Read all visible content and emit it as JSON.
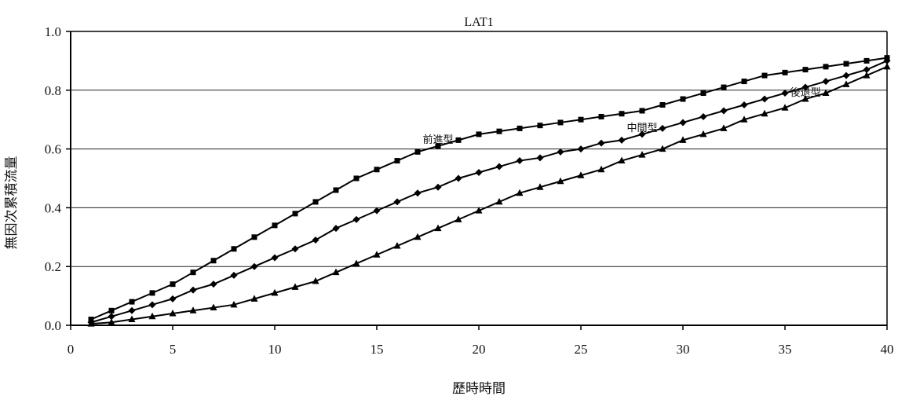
{
  "chart_data": {
    "type": "line",
    "title": "LAT1",
    "xlabel": "歷時時間",
    "ylabel": "無因次累積流量",
    "xlim": [
      0,
      40
    ],
    "ylim": [
      0,
      1.0
    ],
    "x_ticks": [
      0,
      5,
      10,
      15,
      20,
      25,
      30,
      35,
      40
    ],
    "y_ticks": [
      0.0,
      0.2,
      0.4,
      0.6,
      0.8,
      1.0
    ],
    "x_tick_labels": [
      "0",
      "5",
      "10",
      "15",
      "20",
      "25",
      "30",
      "35",
      "40"
    ],
    "y_tick_labels": [
      "0.0",
      "0.2",
      "0.4",
      "0.6",
      "0.8",
      "1.0"
    ],
    "grid": "horizontal",
    "legend": "none",
    "x": [
      1,
      2,
      3,
      4,
      5,
      6,
      7,
      8,
      9,
      10,
      11,
      12,
      13,
      14,
      15,
      16,
      17,
      18,
      19,
      20,
      21,
      22,
      23,
      24,
      25,
      26,
      27,
      28,
      29,
      30,
      31,
      32,
      33,
      34,
      35,
      36,
      37,
      38,
      39,
      40
    ],
    "series": [
      {
        "name": "前進型",
        "marker": "square",
        "label_at": 18,
        "values": [
          0.02,
          0.05,
          0.08,
          0.11,
          0.14,
          0.18,
          0.22,
          0.26,
          0.3,
          0.34,
          0.38,
          0.42,
          0.46,
          0.5,
          0.53,
          0.56,
          0.59,
          0.61,
          0.63,
          0.65,
          0.66,
          0.67,
          0.68,
          0.69,
          0.7,
          0.71,
          0.72,
          0.73,
          0.75,
          0.77,
          0.79,
          0.81,
          0.83,
          0.85,
          0.86,
          0.87,
          0.88,
          0.89,
          0.9,
          0.91
        ]
      },
      {
        "name": "中間型",
        "marker": "diamond",
        "label_at": 28,
        "values": [
          0.01,
          0.03,
          0.05,
          0.07,
          0.09,
          0.12,
          0.14,
          0.17,
          0.2,
          0.23,
          0.26,
          0.29,
          0.33,
          0.36,
          0.39,
          0.42,
          0.45,
          0.47,
          0.5,
          0.52,
          0.54,
          0.56,
          0.57,
          0.59,
          0.6,
          0.62,
          0.63,
          0.65,
          0.67,
          0.69,
          0.71,
          0.73,
          0.75,
          0.77,
          0.79,
          0.81,
          0.83,
          0.85,
          0.87,
          0.9
        ]
      },
      {
        "name": "後退型",
        "marker": "triangle",
        "label_at": 36,
        "values": [
          0.005,
          0.01,
          0.02,
          0.03,
          0.04,
          0.05,
          0.06,
          0.07,
          0.09,
          0.11,
          0.13,
          0.15,
          0.18,
          0.21,
          0.24,
          0.27,
          0.3,
          0.33,
          0.36,
          0.39,
          0.42,
          0.45,
          0.47,
          0.49,
          0.51,
          0.53,
          0.56,
          0.58,
          0.6,
          0.63,
          0.65,
          0.67,
          0.7,
          0.72,
          0.74,
          0.77,
          0.79,
          0.82,
          0.85,
          0.88
        ]
      }
    ]
  }
}
